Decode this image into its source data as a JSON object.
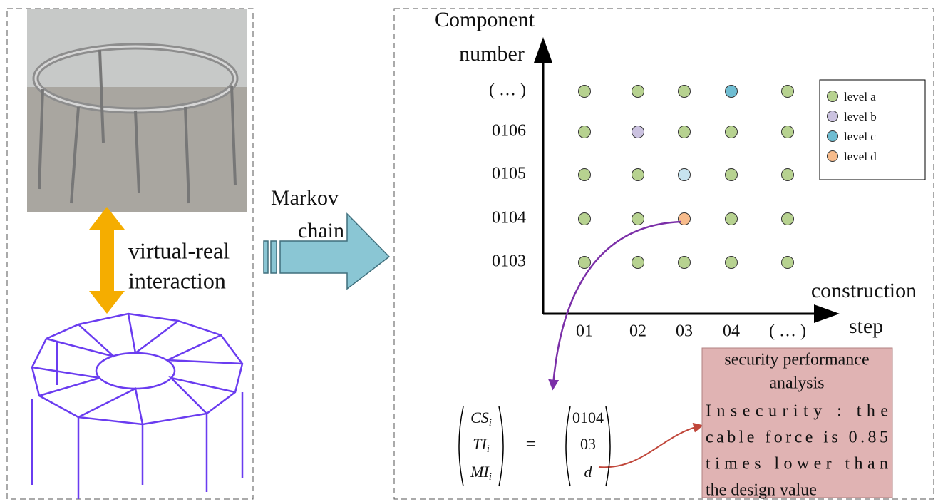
{
  "left_panel": {
    "label_lines": [
      "virtual-real",
      "interaction"
    ]
  },
  "transition": {
    "label_lines": [
      "Markov",
      "chain"
    ]
  },
  "plot": {
    "y_axis_label_lines": [
      "Component",
      "number"
    ],
    "x_axis_label_lines": [
      "construction",
      "step"
    ],
    "rows": [
      "( … )",
      "0106",
      "0105",
      "0104",
      "0103"
    ],
    "columns": [
      "01",
      "02",
      "03",
      "04",
      "( … )"
    ],
    "grid": [
      [
        "a",
        "a",
        "a",
        "c",
        "a"
      ],
      [
        "a",
        "b",
        "a",
        "a",
        "a"
      ],
      [
        "a",
        "a",
        "c",
        "a",
        "a"
      ],
      [
        "a",
        "a",
        "d",
        "a",
        "a"
      ],
      [
        "a",
        "a",
        "a",
        "a",
        "a"
      ]
    ],
    "legend": [
      {
        "key": "a",
        "label": "level a",
        "color": "#b7d290"
      },
      {
        "key": "b",
        "label": "level b",
        "color": "#cbc2e0"
      },
      {
        "key": "c",
        "label": "level c",
        "color": "#6fbdd2"
      },
      {
        "key": "d",
        "label": "level d",
        "color": "#f7bb8b"
      }
    ]
  },
  "formula": {
    "left": [
      {
        "name": "CS",
        "sub": "i"
      },
      {
        "name": "TI",
        "sub": "i"
      },
      {
        "name": "MI",
        "sub": "i"
      }
    ],
    "equals": "=",
    "right": [
      "0104",
      "03",
      "d"
    ]
  },
  "analysis_box": {
    "title_lines": [
      "security performance",
      "analysis"
    ],
    "body_lines": [
      "Insecurity  :  the",
      "cable force is 0.85",
      "times  lower  than",
      "the design value"
    ]
  }
}
